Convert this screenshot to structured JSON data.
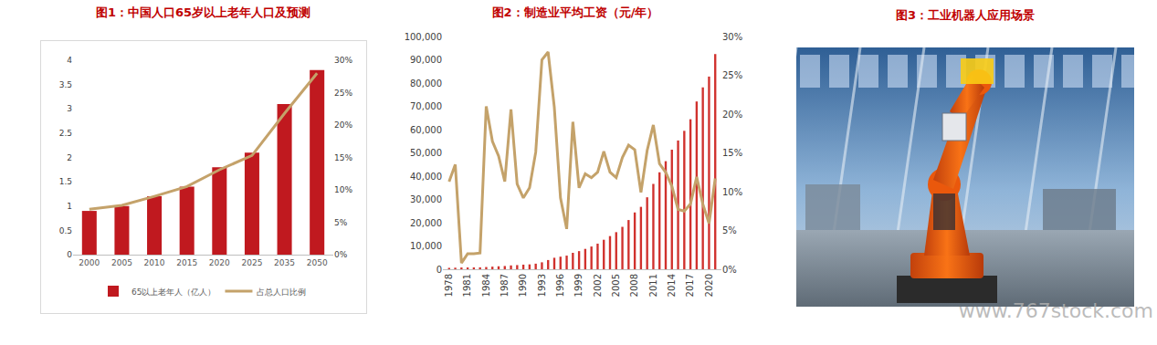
{
  "chart_data": [
    {
      "type": "bar",
      "title": "图1：中国人口65岁以上老年人口及预测",
      "categories": [
        "2000",
        "2005",
        "2010",
        "2015",
        "2020",
        "2025",
        "2035",
        "2050"
      ],
      "series": [
        {
          "name": "65以上老年人（亿人）",
          "type": "bar",
          "color": "#c0191f",
          "values": [
            0.9,
            1.0,
            1.2,
            1.4,
            1.8,
            2.1,
            3.1,
            3.8
          ]
        },
        {
          "name": "占总人口比例",
          "type": "line",
          "axis": "y2",
          "color": "#c4a26a",
          "line_style": "solid",
          "values": [
            7.0,
            7.6,
            9.0,
            10.5,
            13.1,
            15.3,
            21.8,
            28.0
          ]
        }
      ],
      "ylim": [
        0,
        4
      ],
      "yticks": [
        0,
        0.5,
        1,
        1.5,
        2,
        2.5,
        3,
        3.5,
        4
      ],
      "y2lim": [
        0,
        30
      ],
      "y2ticks": [
        {
          "value": 0,
          "label": "0%"
        },
        {
          "value": 5,
          "label": "5%"
        },
        {
          "value": 10,
          "label": "10%"
        },
        {
          "value": 15,
          "label": "15%"
        },
        {
          "value": 20,
          "label": "20%"
        },
        {
          "value": 25,
          "label": "25%"
        },
        {
          "value": 30,
          "label": "30%"
        }
      ],
      "grid": false,
      "legend": "bottom"
    },
    {
      "type": "bar",
      "title": "图2：制造业平均工资（元/年）",
      "x": [
        1978,
        1979,
        1980,
        1981,
        1982,
        1983,
        1984,
        1985,
        1986,
        1987,
        1988,
        1989,
        1990,
        1991,
        1992,
        1993,
        1994,
        1995,
        1996,
        1997,
        1998,
        1999,
        2000,
        2001,
        2002,
        2003,
        2004,
        2005,
        2006,
        2007,
        2008,
        2009,
        2010,
        2011,
        2012,
        2013,
        2014,
        2015,
        2016,
        2017,
        2018,
        2019,
        2020,
        2021
      ],
      "series": [
        {
          "type": "bar",
          "color": "#d0312d",
          "values": [
            597,
            664,
            752,
            761,
            786,
            815,
            953,
            1112,
            1275,
            1394,
            1649,
            1790,
            1975,
            2089,
            2395,
            2986,
            3955,
            4934,
            5400,
            5860,
            7064,
            7794,
            8750,
            9774,
            11001,
            12671,
            14251,
            15934,
            18225,
            21144,
            24404,
            26810,
            30916,
            36665,
            41650,
            46431,
            51369,
            55324,
            59470,
            64452,
            72088,
            78147,
            82783,
            92459
          ]
        },
        {
          "type": "line",
          "axis": "y2",
          "color": "#c4a26a",
          "line_style": "solid",
          "values": [
            11.3,
            13.5,
            0.8,
            2.0,
            2.0,
            2.1,
            21.0,
            16.5,
            14.6,
            11.3,
            20.6,
            11.0,
            9.2,
            10.5,
            15.1,
            27.0,
            28.0,
            20.9,
            9.2,
            5.2,
            19.0,
            10.5,
            12.3,
            11.8,
            12.5,
            15.2,
            12.5,
            11.8,
            14.4,
            16.0,
            15.4,
            9.9,
            15.3,
            18.6,
            13.6,
            12.5,
            10.7,
            7.7,
            7.5,
            8.4,
            11.9,
            8.4,
            5.9,
            11.7
          ]
        }
      ],
      "xlim": [
        1977,
        2022
      ],
      "xticks": [
        1978,
        1981,
        1984,
        1987,
        1990,
        1993,
        1996,
        1999,
        2002,
        2005,
        2008,
        2011,
        2014,
        2017,
        2020
      ],
      "ylim": [
        0,
        100000
      ],
      "yticks": [
        0,
        {
          "value": 10000,
          "label": "10,000"
        },
        {
          "value": 20000,
          "label": "20,000"
        },
        {
          "value": 30000,
          "label": "30,000"
        },
        {
          "value": 40000,
          "label": "40,000"
        },
        {
          "value": 50000,
          "label": "50,000"
        },
        {
          "value": 60000,
          "label": "60,000"
        },
        {
          "value": 70000,
          "label": "70,000"
        },
        {
          "value": 80000,
          "label": "80,000"
        },
        {
          "value": 90000,
          "label": "90,000"
        },
        {
          "value": 100000,
          "label": "100,000"
        }
      ],
      "y2lim": [
        0,
        30
      ],
      "y2ticks": [
        {
          "value": 0,
          "label": "0%"
        },
        {
          "value": 5,
          "label": "5%"
        },
        {
          "value": 10,
          "label": "10%"
        },
        {
          "value": 15,
          "label": "15%"
        },
        {
          "value": 20,
          "label": "20%"
        },
        {
          "value": 25,
          "label": "25%"
        },
        {
          "value": 30,
          "label": "30%"
        }
      ],
      "grid": false
    }
  ],
  "figure3": {
    "title": "图3：工业机器人应用场景"
  },
  "watermark": "www.767stock.com"
}
